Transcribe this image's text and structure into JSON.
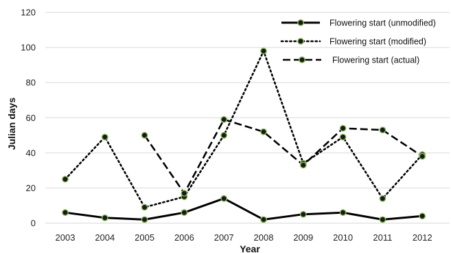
{
  "chart_data": {
    "type": "line",
    "title": "",
    "xlabel": "Year",
    "ylabel": "Julian days",
    "ylim": [
      0,
      120
    ],
    "yticks": [
      0,
      20,
      40,
      60,
      80,
      100,
      120
    ],
    "grid": "horizontal",
    "legend_position": "top-right",
    "categories": [
      "2003",
      "2004",
      "2005",
      "2006",
      "2007",
      "2008",
      "2009",
      "2010",
      "2011",
      "2012"
    ],
    "series": [
      {
        "name": "Flowering start (unmodified)",
        "style": "solid",
        "values": [
          6,
          3,
          2,
          6,
          14,
          2,
          5,
          6,
          2,
          4
        ]
      },
      {
        "name": "Flowering start (modified)",
        "style": "dotted",
        "values": [
          25,
          49,
          9,
          15,
          50,
          98,
          34,
          49,
          14,
          39
        ]
      },
      {
        "name": "Flowering start (actual)",
        "style": "dashed",
        "values": [
          null,
          null,
          50,
          17,
          59,
          52,
          33,
          54,
          53,
          38
        ]
      }
    ],
    "colors": {
      "line": "#000000",
      "marker_fill": "#1a1a1a",
      "marker_edge": "#8bbf5a",
      "grid": "#d9d9d9"
    }
  }
}
